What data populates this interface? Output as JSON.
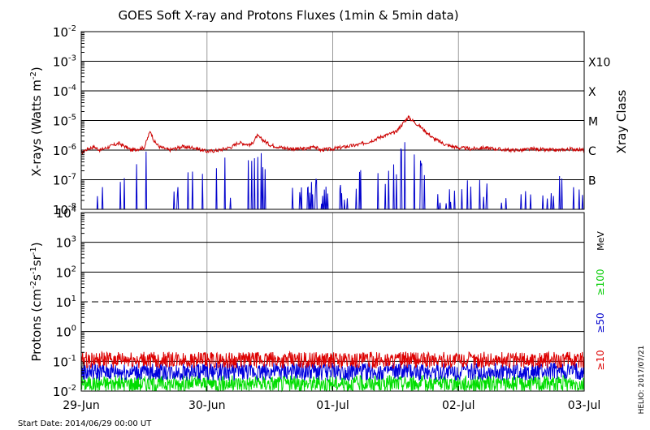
{
  "chart_data": [
    {
      "type": "line",
      "title": "GOES Soft X-ray and Protons Fluxes   (1min & 5min data)",
      "ylabel": "X-rays (Watts m",
      "ylabel_sup": "-2",
      "ylabel_close": ")",
      "y_scale": "log",
      "ylim": [
        1e-08,
        0.01
      ],
      "y_ticks": [
        {
          "base": "10",
          "exp": "-2"
        },
        {
          "base": "10",
          "exp": "-3"
        },
        {
          "base": "10",
          "exp": "-4"
        },
        {
          "base": "10",
          "exp": "-5"
        },
        {
          "base": "10",
          "exp": "-6"
        },
        {
          "base": "10",
          "exp": "-7"
        },
        {
          "base": "10",
          "exp": "-8"
        }
      ],
      "right_axis_label": "Xray Class",
      "right_ticks": [
        "X10",
        "X",
        "M",
        "C",
        "B"
      ],
      "grid": true,
      "series": [
        {
          "color": "#cc0000",
          "x": [
            0,
            0.05,
            0.1,
            0.15,
            0.2,
            0.3,
            0.4,
            0.5,
            0.55,
            0.58,
            0.62,
            0.7,
            0.8,
            0.9,
            1.0,
            1.1,
            1.2,
            1.25,
            1.35,
            1.4,
            1.5,
            1.6,
            1.7,
            1.8,
            1.85,
            1.9,
            2.0,
            2.1,
            2.2,
            2.3,
            2.4,
            2.5,
            2.6,
            2.7,
            2.8,
            2.9,
            3.0,
            3.1,
            3.2,
            3.3,
            3.4,
            3.5,
            3.6,
            3.7,
            3.8,
            3.9,
            4.0
          ],
          "y": [
            8e-07,
            1.1e-06,
            1.3e-06,
            1e-06,
            1.2e-06,
            1.7e-06,
            1e-06,
            1.2e-06,
            4.5e-06,
            2e-06,
            1.3e-06,
            1e-06,
            1.3e-06,
            1.2e-06,
            9e-07,
            1e-06,
            1.3e-06,
            1.8e-06,
            1.5e-06,
            3e-06,
            1.5e-06,
            1.2e-06,
            1.1e-06,
            1.1e-06,
            1.4e-06,
            1e-06,
            1.1e-06,
            1.3e-06,
            1.5e-06,
            2e-06,
            3e-06,
            4e-06,
            1.3e-05,
            6e-06,
            2.5e-06,
            1.5e-06,
            1.2e-06,
            1.1e-06,
            1.2e-06,
            1.1e-06,
            1e-06,
            1e-06,
            1.1e-06,
            1e-06,
            1e-06,
            1.1e-06,
            1e-06
          ]
        },
        {
          "color": "#0000cc",
          "x": [
            0,
            0.3,
            0.55,
            0.6,
            0.8,
            1.15,
            1.2,
            1.35,
            1.45,
            1.6,
            1.85,
            2.0,
            2.2,
            2.4,
            2.5,
            2.6,
            2.7,
            2.8,
            3.0,
            3.2,
            3.5,
            3.8,
            4.0
          ],
          "y": [
            1e-08,
            8e-08,
            6e-07,
            1e-08,
            6e-08,
            5e-07,
            1e-08,
            4e-07,
            3e-07,
            1e-08,
            5e-08,
            1e-08,
            8e-08,
            1e-07,
            2e-07,
            1.5e-06,
            4e-07,
            1e-08,
            5e-08,
            3e-08,
            1e-08,
            5e-08,
            1e-08
          ]
        }
      ]
    },
    {
      "type": "line",
      "ylabel": "Protons (cm",
      "ylabel_sup1": "-2",
      "ylabel_mid": "s",
      "ylabel_sup2": "-1",
      "ylabel_mid2": "sr",
      "ylabel_sup3": "-1",
      "ylabel_close": ")",
      "y_scale": "log",
      "ylim": [
        0.01,
        10000
      ],
      "y_ticks": [
        {
          "base": "10",
          "exp": "4"
        },
        {
          "base": "10",
          "exp": "3"
        },
        {
          "base": "10",
          "exp": "2"
        },
        {
          "base": "10",
          "exp": "1"
        },
        {
          "base": "10",
          "exp": "0"
        },
        {
          "base": "10",
          "exp": "-1"
        },
        {
          "base": "10",
          "exp": "-2"
        }
      ],
      "threshold": 10,
      "unit_label": "MeV",
      "x_ticks": [
        "29-Jun",
        "30-Jun",
        "01-Jul",
        "02-Jul",
        "03-Jul"
      ],
      "grid": true,
      "series": [
        {
          "name": "≥10",
          "color": "#dd0000",
          "level": 0.11,
          "noise": 0.55
        },
        {
          "name": "≥50",
          "color": "#0000dd",
          "level": 0.045,
          "noise": 0.6
        },
        {
          "name": "≥100",
          "color": "#00dd00",
          "level": 0.018,
          "noise": 0.55
        }
      ]
    }
  ],
  "footer": {
    "start_date": "Start Date: 2014/06/29 00:00 UT",
    "credit": "HELIO: 2017/07/21"
  }
}
